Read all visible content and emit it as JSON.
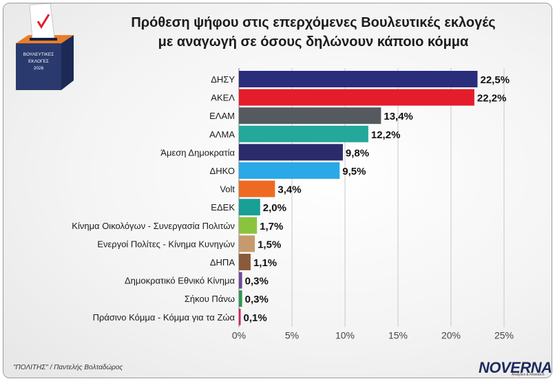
{
  "title_line1": "Πρόθεση ψήφου στις επερχόμενες Βουλευτικές εκλογές",
  "title_line2": "με αναγωγή σε όσους δηλώνουν κάποιο κόμμα",
  "logo_text": [
    "ΒΟΥΛΕΥΤΙΚΕΣ",
    "ΕΚΛΟΓΕΣ",
    "2026"
  ],
  "credit": "\"ΠΟΛΙΤΗΣ\" / Παντελής Βολταδώρος",
  "brand": "NOVERNA",
  "brand_sub": "Analytics & Research",
  "chart_data": {
    "type": "bar",
    "orientation": "horizontal",
    "categories": [
      "ΔΗΣΥ",
      "ΑΚΕΛ",
      "ΕΛΑΜ",
      "ΑΛΜΑ",
      "Άμεση Δημοκρατία",
      "ΔΗΚΟ",
      "Volt",
      "ΕΔΕΚ",
      "Κίνημα Οικολόγων - Συνεργασία Πολιτών",
      "Ενεργοί Πολίτες - Κίνημα Κυνηγών",
      "ΔΗΠΑ",
      "Δημοκρατικό Εθνικό Κίνημα",
      "Σήκου Πάνω",
      "Πράσινο Κόμμα - Κόμμα για τα Ζώα"
    ],
    "values": [
      22.5,
      22.2,
      13.4,
      12.2,
      9.8,
      9.5,
      3.4,
      2.0,
      1.7,
      1.5,
      1.1,
      0.3,
      0.3,
      0.1
    ],
    "value_labels": [
      "22,5%",
      "22,2%",
      "13,4%",
      "12,2%",
      "9,8%",
      "9,5%",
      "3,4%",
      "2,0%",
      "1,7%",
      "1,5%",
      "1,1%",
      "0,3%",
      "0,3%",
      "0,1%"
    ],
    "colors": [
      "#2a2d7c",
      "#e51c2c",
      "#555a60",
      "#23a89b",
      "#2b2a6b",
      "#2aa9e6",
      "#ee6a22",
      "#199f95",
      "#8ac43f",
      "#c59a6d",
      "#8a5a3a",
      "#6f4a96",
      "#2d9a4f",
      "#d81e5b"
    ],
    "xlim": [
      0,
      25
    ],
    "xticks": [
      0,
      5,
      10,
      15,
      20,
      25
    ],
    "xtick_labels": [
      "0%",
      "5%",
      "10%",
      "15%",
      "20%",
      "25%"
    ],
    "grid": "vertical",
    "legend": "none"
  }
}
